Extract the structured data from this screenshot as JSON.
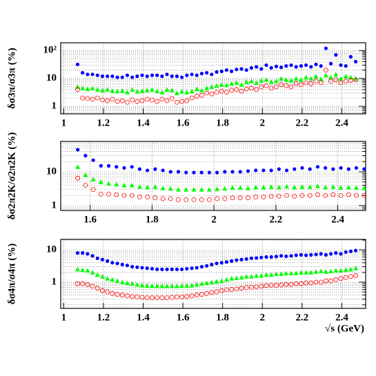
{
  "chart_data": [
    {
      "type": "scatter",
      "ylabel": "δσ3π/σ3π (%)",
      "yscale": "log",
      "grid": true,
      "xlim": [
        0.985,
        2.52
      ],
      "xticks": [
        1,
        1.2,
        1.4,
        1.6,
        1.8,
        2,
        2.2,
        2.4
      ],
      "ylim": [
        0.54,
        190
      ],
      "yticks": [
        1,
        10,
        {
          "value": 100,
          "label": "10²"
        }
      ],
      "yminorticks": [
        0.6,
        0.7,
        0.8,
        0.9,
        2,
        3,
        4,
        5,
        6,
        7,
        8,
        9,
        20,
        30,
        40,
        50,
        60,
        70,
        80,
        90
      ],
      "x": [
        1.07,
        1.095,
        1.12,
        1.145,
        1.17,
        1.195,
        1.22,
        1.245,
        1.27,
        1.295,
        1.32,
        1.345,
        1.37,
        1.395,
        1.42,
        1.445,
        1.47,
        1.495,
        1.52,
        1.545,
        1.57,
        1.595,
        1.62,
        1.645,
        1.67,
        1.695,
        1.72,
        1.745,
        1.77,
        1.795,
        1.82,
        1.845,
        1.87,
        1.895,
        1.92,
        1.945,
        1.97,
        1.995,
        2.02,
        2.045,
        2.07,
        2.095,
        2.12,
        2.145,
        2.17,
        2.195,
        2.22,
        2.245,
        2.27,
        2.295,
        2.32,
        2.345,
        2.37,
        2.395,
        2.42,
        2.445,
        2.47
      ],
      "series": [
        {
          "color": "#0000ff",
          "marker": "circle",
          "values": [
            32,
            16,
            14,
            14,
            13,
            12,
            12,
            12,
            11,
            11,
            13,
            11,
            12,
            13,
            12,
            13,
            13,
            12,
            14,
            12,
            12,
            11,
            13,
            14,
            13,
            15,
            16,
            14,
            17,
            18,
            20,
            18,
            21,
            22,
            20,
            24,
            26,
            22,
            30,
            24,
            27,
            25,
            28,
            30,
            26,
            28,
            30,
            26,
            32,
            28,
            120,
            34,
            70,
            30,
            28,
            60,
            40
          ]
        },
        {
          "color": "#00ff00",
          "marker": "triangle",
          "values": [
            5,
            4.5,
            4.2,
            4.5,
            4,
            3.8,
            4,
            3.6,
            3.5,
            3.6,
            3.2,
            4,
            3.4,
            3.6,
            3.8,
            4,
            3.5,
            3.2,
            4,
            3.8,
            3,
            3.4,
            3.2,
            3.5,
            4.2,
            3.8,
            4.5,
            5,
            5.5,
            6,
            5.8,
            6.5,
            7,
            6,
            7.5,
            8,
            7,
            8.5,
            9,
            7.5,
            8,
            10,
            9,
            8.5,
            10,
            9,
            11,
            10,
            12,
            9.5,
            13,
            11,
            14,
            10,
            12,
            11,
            10
          ]
        },
        {
          "color": "#ff0000",
          "marker": "open-circle",
          "values": [
            4,
            2,
            1.9,
            1.8,
            2,
            1.7,
            1.6,
            1.8,
            1.5,
            1.6,
            1.4,
            1.7,
            1.5,
            1.6,
            1.8,
            1.7,
            1.5,
            1.8,
            1.6,
            1.9,
            1.4,
            1.5,
            1.6,
            2,
            2.3,
            2.5,
            3,
            2.8,
            3.2,
            3.5,
            3.2,
            3.8,
            4,
            3.5,
            4.2,
            4.5,
            4,
            5,
            5.5,
            4.5,
            5,
            6,
            5.5,
            5,
            6.5,
            6,
            7,
            6.5,
            8,
            7,
            20,
            8,
            9,
            7,
            8,
            8.5,
            9
          ]
        }
      ]
    },
    {
      "type": "scatter",
      "ylabel": "δσ2π2K/σ2π2K (%)",
      "yscale": "log",
      "grid": true,
      "xlim": [
        1.505,
        2.49
      ],
      "xticks": [
        1.6,
        1.8,
        2,
        2.2,
        2.4
      ],
      "ylim": [
        0.72,
        79
      ],
      "yticks": [
        1,
        10
      ],
      "yminorticks": [
        0.8,
        0.9,
        2,
        3,
        4,
        5,
        6,
        7,
        8,
        9,
        20,
        30,
        40,
        50,
        60,
        70
      ],
      "x": [
        1.56,
        1.585,
        1.61,
        1.635,
        1.66,
        1.685,
        1.71,
        1.735,
        1.76,
        1.785,
        1.81,
        1.835,
        1.86,
        1.885,
        1.91,
        1.935,
        1.96,
        1.985,
        2.01,
        2.035,
        2.06,
        2.085,
        2.11,
        2.135,
        2.16,
        2.185,
        2.21,
        2.235,
        2.26,
        2.285,
        2.31,
        2.335,
        2.36,
        2.385,
        2.41,
        2.435,
        2.46,
        2.485
      ],
      "series": [
        {
          "color": "#0000ff",
          "marker": "circle",
          "values": [
            45,
            30,
            22,
            15,
            15,
            14,
            13,
            14,
            12,
            11,
            12,
            11,
            10,
            10,
            9.5,
            9.5,
            9.5,
            9.5,
            9.5,
            10,
            10,
            10,
            10.5,
            11,
            11,
            11,
            12,
            11,
            12,
            13,
            12,
            14,
            13,
            12,
            13,
            12,
            13,
            12
          ]
        },
        {
          "color": "#00ff00",
          "marker": "triangle",
          "values": [
            14,
            8,
            6,
            5,
            4.5,
            4.3,
            4,
            4,
            3.6,
            3.5,
            3.6,
            3.3,
            3.2,
            3,
            3,
            3,
            3,
            3,
            3.1,
            3.2,
            3.4,
            3.4,
            3.3,
            3.5,
            3.5,
            3.6,
            3.5,
            3.7,
            3.5,
            3.6,
            3.6,
            3.8,
            3.5,
            3.6,
            3.4,
            3.5,
            3.4,
            3.3
          ]
        },
        {
          "color": "#ff0000",
          "marker": "open-circle",
          "values": [
            6.5,
            4,
            3,
            2.2,
            2.2,
            2.1,
            2,
            2,
            1.8,
            1.8,
            1.7,
            1.6,
            1.6,
            1.5,
            1.5,
            1.5,
            1.5,
            1.5,
            1.6,
            1.6,
            1.7,
            1.7,
            1.7,
            1.8,
            1.8,
            1.9,
            1.9,
            2,
            1.9,
            2,
            2,
            2.1,
            2,
            2.1,
            2,
            2.1,
            2,
            2
          ]
        }
      ]
    },
    {
      "type": "scatter",
      "ylabel": "δσ4π/σ4π (%)",
      "xlabel": "√s (GeV)",
      "yscale": "log",
      "grid": true,
      "xlim": [
        0.985,
        2.52
      ],
      "xticks": [
        1,
        1.2,
        1.4,
        1.6,
        1.8,
        2,
        2.2,
        2.4
      ],
      "ylim": [
        0.155,
        21
      ],
      "yticks": [
        1,
        10
      ],
      "yminorticks": [
        0.2,
        0.3,
        0.4,
        0.5,
        0.6,
        0.7,
        0.8,
        0.9,
        2,
        3,
        4,
        5,
        6,
        7,
        8,
        9,
        20
      ],
      "x": [
        1.07,
        1.095,
        1.12,
        1.145,
        1.17,
        1.195,
        1.22,
        1.245,
        1.27,
        1.295,
        1.32,
        1.345,
        1.37,
        1.395,
        1.42,
        1.445,
        1.47,
        1.495,
        1.52,
        1.545,
        1.57,
        1.595,
        1.62,
        1.645,
        1.67,
        1.695,
        1.72,
        1.745,
        1.77,
        1.795,
        1.82,
        1.845,
        1.87,
        1.895,
        1.92,
        1.945,
        1.97,
        1.995,
        2.02,
        2.045,
        2.07,
        2.095,
        2.12,
        2.145,
        2.17,
        2.195,
        2.22,
        2.245,
        2.27,
        2.295,
        2.32,
        2.345,
        2.37,
        2.395,
        2.42,
        2.445,
        2.47
      ],
      "series": [
        {
          "color": "#0000ff",
          "marker": "circle",
          "values": [
            8,
            8,
            7.5,
            6.5,
            5.5,
            5,
            4.5,
            4,
            3.8,
            3.5,
            3.3,
            3,
            2.9,
            2.8,
            2.7,
            2.6,
            2.5,
            2.5,
            2.5,
            2.5,
            2.5,
            2.5,
            2.6,
            2.7,
            2.8,
            3,
            3.2,
            3.5,
            3.8,
            4,
            4.2,
            4.5,
            4.8,
            5,
            5.2,
            5.5,
            5.6,
            5.8,
            6,
            6,
            6.2,
            6.5,
            6.3,
            6.5,
            6.8,
            7,
            6.8,
            7,
            7.2,
            7.5,
            7,
            7.5,
            8,
            7.5,
            8.5,
            9,
            9.5
          ]
        },
        {
          "color": "#00ff00",
          "marker": "triangle",
          "values": [
            2.5,
            2.4,
            2.3,
            2,
            1.7,
            1.5,
            1.3,
            1.2,
            1.1,
            1,
            0.95,
            0.9,
            0.85,
            0.8,
            0.78,
            0.77,
            0.76,
            0.76,
            0.76,
            0.76,
            0.76,
            0.77,
            0.78,
            0.8,
            0.85,
            0.9,
            0.95,
            1,
            1.05,
            1.1,
            1.2,
            1.3,
            1.35,
            1.4,
            1.5,
            1.5,
            1.6,
            1.6,
            1.7,
            1.7,
            1.8,
            1.8,
            1.9,
            1.9,
            1.9,
            2,
            2,
            2,
            2.1,
            2.2,
            2.1,
            2.2,
            2.3,
            2.3,
            2.4,
            2.5,
            2.7
          ]
        },
        {
          "color": "#ff0000",
          "marker": "open-circle",
          "values": [
            0.9,
            0.9,
            0.85,
            0.75,
            0.65,
            0.55,
            0.5,
            0.45,
            0.42,
            0.4,
            0.38,
            0.36,
            0.35,
            0.34,
            0.33,
            0.33,
            0.33,
            0.33,
            0.33,
            0.34,
            0.35,
            0.35,
            0.36,
            0.38,
            0.4,
            0.42,
            0.45,
            0.48,
            0.5,
            0.55,
            0.58,
            0.6,
            0.62,
            0.65,
            0.68,
            0.7,
            0.72,
            0.75,
            0.78,
            0.8,
            0.8,
            0.82,
            0.85,
            0.85,
            0.9,
            0.9,
            0.95,
            0.95,
            1,
            1,
            1.1,
            1.1,
            1.2,
            1.3,
            1.4,
            1.5,
            1.6
          ]
        }
      ]
    }
  ]
}
